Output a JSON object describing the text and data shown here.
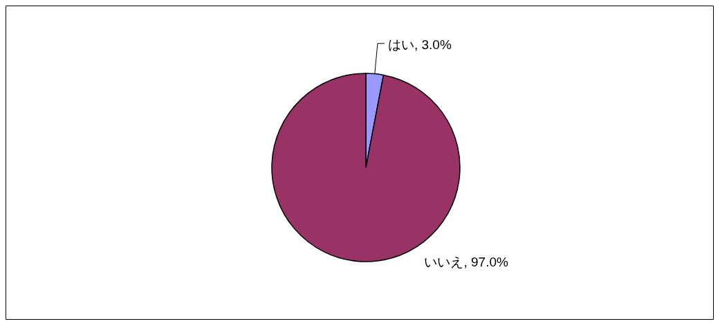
{
  "chart_data": {
    "type": "pie",
    "categories": [
      "はい",
      "いいえ"
    ],
    "values": [
      3,
      97
    ],
    "colors": [
      "#9999ff",
      "#993366"
    ],
    "value_labels": [
      "3.0%",
      "97.0%"
    ]
  }
}
